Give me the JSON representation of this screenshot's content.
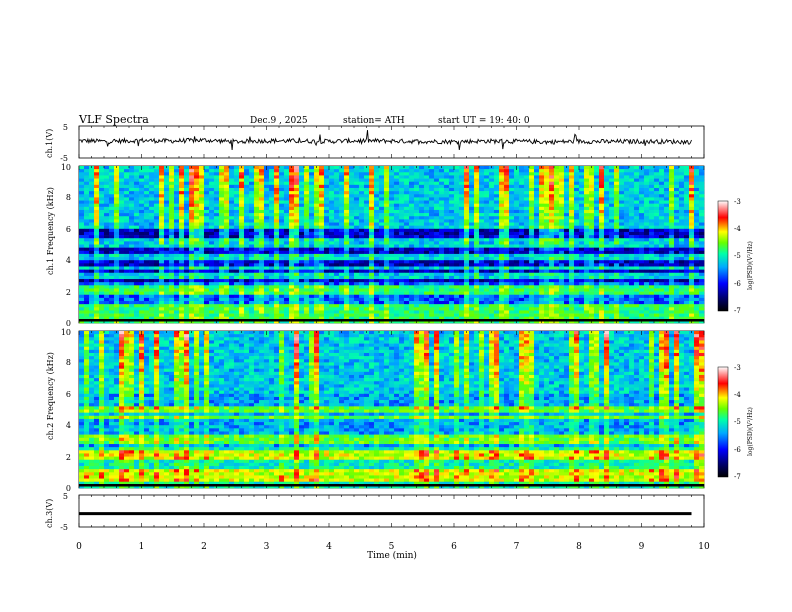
{
  "header": {
    "title": "VLF  Spectra",
    "date": "Dec.9  , 2025",
    "station": "station= ATH",
    "start_ut": "start  UT  =    19: 40: 0"
  },
  "colors": {
    "background": "#ffffff",
    "trace": "#000000",
    "colormap": [
      "#000000",
      "#000070",
      "#0000ff",
      "#00aaff",
      "#00ffaa",
      "#66ff00",
      "#ffff00",
      "#ff0000",
      "#ffffff"
    ]
  },
  "chart_data": [
    {
      "type": "line",
      "panel": "ch1-time-series",
      "ylabel": "ch.1(V)",
      "ylim": [
        -5,
        5
      ],
      "y_ticks": [
        "5",
        "-5"
      ],
      "x": [
        0,
        0.5,
        1,
        1.5,
        2,
        2.5,
        3,
        3.5,
        4,
        4.5,
        5,
        5.5,
        6,
        6.5,
        7,
        7.5,
        8,
        8.5,
        9,
        9.5,
        9.8
      ],
      "y": [
        0.4,
        0.2,
        0.5,
        0.3,
        0.6,
        0.1,
        0.4,
        0.3,
        0.2,
        0.4,
        0.3,
        0.2,
        0.1,
        0.3,
        0.2,
        0.0,
        0.2,
        0.1,
        0.2,
        0.1,
        0.0
      ]
    },
    {
      "type": "heatmap",
      "panel": "ch1-spectrogram",
      "ylabel": "ch.1 Frequency (kHz)",
      "ylim": [
        0,
        10
      ],
      "y_ticks": [
        "0",
        "2",
        "4",
        "6",
        "8",
        "10"
      ],
      "colorbar": {
        "label": "log(PSD)(V²/Hz)",
        "range": [
          -7,
          -3
        ],
        "ticks": [
          "-3",
          "-4",
          "-5",
          "-6",
          "-7"
        ]
      },
      "bands_khz": [
        0.2,
        0.6,
        1.0,
        2.0,
        2.3,
        3.0,
        3.5,
        4.2,
        5.0,
        5.3
      ]
    },
    {
      "type": "heatmap",
      "panel": "ch2-spectrogram",
      "ylabel": "ch.2 Frequency (kHz)",
      "ylim": [
        0,
        10
      ],
      "y_ticks": [
        "0",
        "2",
        "4",
        "6",
        "8",
        "10"
      ],
      "colorbar": {
        "label": "log(PSD)(V²/Hz)",
        "range": [
          -7,
          -3
        ],
        "ticks": [
          "-3",
          "-4",
          "-5",
          "-6",
          "-7"
        ]
      },
      "bands_khz": [
        0.6,
        1.0,
        2.0,
        2.3,
        3.0,
        3.3,
        4.5,
        5.0
      ]
    },
    {
      "type": "line",
      "panel": "ch3-time-series",
      "ylabel": "ch.3(V)",
      "ylim": [
        -5,
        5
      ],
      "y_ticks": [
        "5",
        "-5"
      ],
      "x": [
        0,
        9.8
      ],
      "y": [
        -0.8,
        -0.8
      ]
    }
  ],
  "xaxis": {
    "label": "Time  (min)",
    "range": [
      0,
      10
    ],
    "ticks": [
      "0",
      "1",
      "2",
      "3",
      "4",
      "5",
      "6",
      "7",
      "8",
      "9",
      "10"
    ]
  }
}
